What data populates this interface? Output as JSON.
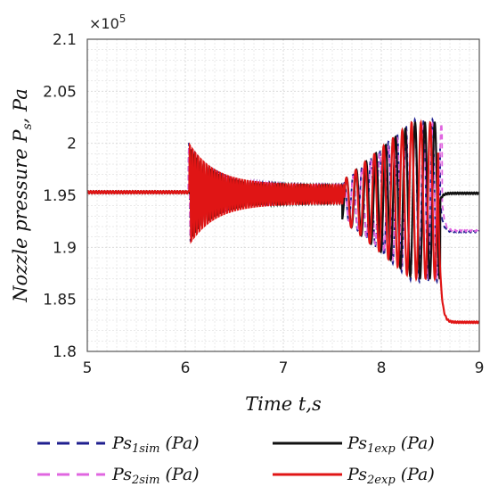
{
  "chart_data": {
    "type": "line",
    "title": "",
    "xlabel": "Time t,s",
    "ylabel_main": "Nozzle pressure P",
    "ylabel_sub": "s",
    "ylabel_tail": ", Pa",
    "exponent_label": "×10",
    "exponent_power": "5",
    "xlim": [
      5,
      9
    ],
    "ylim": [
      1.8,
      2.1
    ],
    "x_ticks": [
      "5",
      "6",
      "7",
      "8",
      "9"
    ],
    "y_ticks": [
      "1.8",
      "1.85",
      "1.9",
      "1.95",
      "2",
      "2.05",
      "2.1"
    ],
    "y_tick_values": [
      1.8,
      1.85,
      1.9,
      1.95,
      2.0,
      2.05,
      2.1
    ],
    "x_tick_values": [
      5,
      6,
      7,
      8,
      9
    ],
    "grid": true,
    "legend_position": "bottom",
    "colors": {
      "ps1sim": "#1f1f8f",
      "ps2sim": "#e066e0",
      "ps1exp": "#111111",
      "ps2exp": "#e01515",
      "grid": "#d6d6d6",
      "axis": "#555555"
    },
    "series": [
      {
        "name_main": "Ps",
        "name_sub": "1sim",
        "name_tail": " (Pa)",
        "style": "dashed",
        "color_key": "ps1sim",
        "steady_start": 1.953,
        "burst1": {
          "x_start": 6.03,
          "x_end": 7.6,
          "period": 0.03,
          "amp_start": 0.042,
          "amp_end": 0.008,
          "center": 1.952
        },
        "burst2": {
          "x_start": 7.6,
          "x_end": 8.6,
          "period": 0.09,
          "amp_start": 0.015,
          "amp_end": 0.078,
          "center": 1.945
        },
        "final": 1.915
      },
      {
        "name_main": "Ps",
        "name_sub": "2sim",
        "name_tail": " (Pa)",
        "style": "dashed",
        "color_key": "ps2sim",
        "steady_start": 1.953,
        "burst1": {
          "x_start": 6.03,
          "x_end": 7.6,
          "period": 0.03,
          "amp_start": 0.038,
          "amp_end": 0.008,
          "center": 1.952
        },
        "burst2": {
          "x_start": 7.6,
          "x_end": 8.62,
          "period": 0.09,
          "amp_start": 0.014,
          "amp_end": 0.074,
          "center": 1.945
        },
        "final": 1.916
      },
      {
        "name_main": "Ps",
        "name_sub": "1exp",
        "name_tail": " (Pa)",
        "style": "solid",
        "color_key": "ps1exp",
        "steady_start": 1.953,
        "burst1": {
          "x_start": 6.05,
          "x_end": 7.6,
          "period": 0.032,
          "amp_start": 0.036,
          "amp_end": 0.008,
          "center": 1.951
        },
        "burst2": {
          "x_start": 7.62,
          "x_end": 8.6,
          "period": 0.1,
          "amp_start": 0.02,
          "amp_end": 0.075,
          "center": 1.945
        },
        "final": 1.952
      },
      {
        "name_main": "Ps",
        "name_sub": "2exp",
        "name_tail": " (Pa)",
        "style": "solid",
        "color_key": "ps2exp",
        "steady_start": 1.953,
        "burst1": {
          "x_start": 6.04,
          "x_end": 7.62,
          "period": 0.028,
          "amp_start": 0.04,
          "amp_end": 0.009,
          "center": 1.951
        },
        "burst2": {
          "x_start": 7.62,
          "x_end": 8.58,
          "period": 0.095,
          "amp_start": 0.02,
          "amp_end": 0.075,
          "center": 1.945
        },
        "final": 1.828
      }
    ]
  }
}
